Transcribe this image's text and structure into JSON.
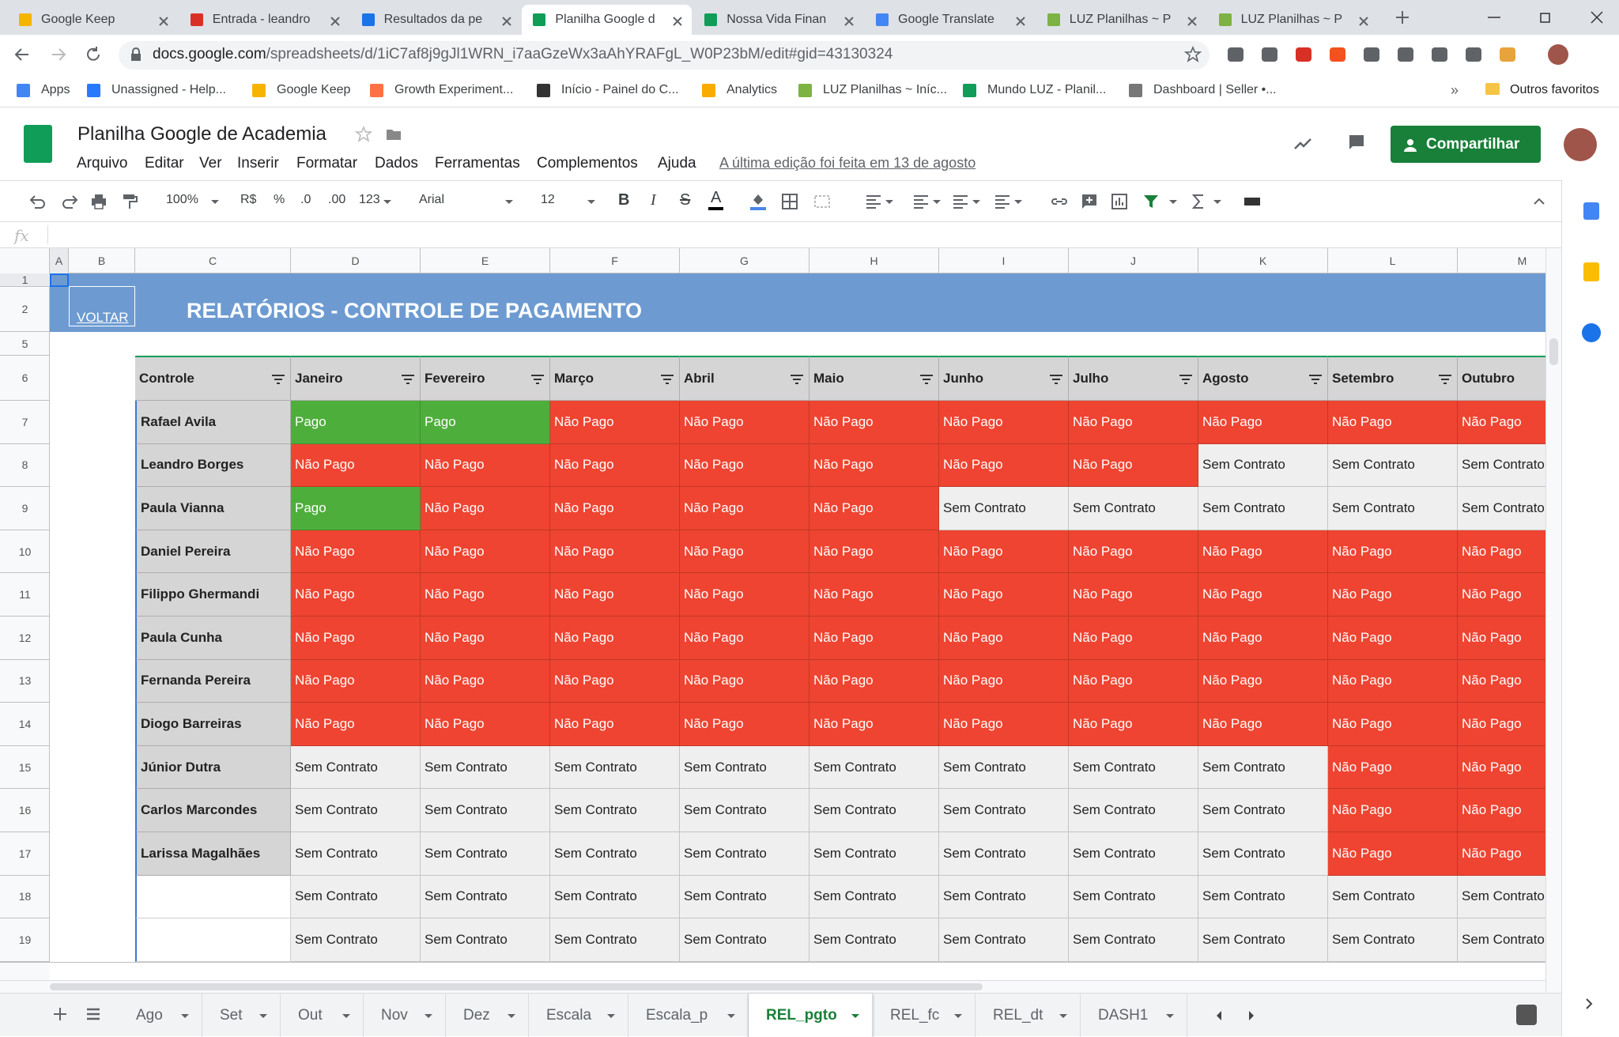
{
  "browser": {
    "tabs": [
      "Google Keep",
      "Entrada - leandro",
      "Resultados da pe",
      "Planilha Google d",
      "Nossa Vida Finan",
      "Google Translate",
      "LUZ Planilhas ~ P",
      "LUZ Planilhas ~ P"
    ],
    "active_tab": 3,
    "url_host": "docs.google.com",
    "url_path": "/spreadsheets/d/1iC7af8j9gJl1WRN_i7aaGzeWx3aAhYRAFgL_W0P23bM/edit#gid=43130324",
    "bookmarks": [
      "Apps",
      "Unassigned - Help...",
      "Google Keep",
      "Growth Experiment...",
      "Início - Painel do C...",
      "Analytics",
      "LUZ Planilhas ~ Iníc...",
      "Mundo LUZ - Planil...",
      "Dashboard | Seller •..."
    ],
    "more_bookmarks": "»",
    "other_bookmarks": "Outros favoritos"
  },
  "docs": {
    "title": "Planilha Google de Academia",
    "menu": [
      "Arquivo",
      "Editar",
      "Ver",
      "Inserir",
      "Formatar",
      "Dados",
      "Ferramentas",
      "Complementos",
      "Ajuda"
    ],
    "last_edit": "A última edição foi feita em 13 de agosto",
    "share": "Compartilhar"
  },
  "toolbar": {
    "zoom": "100%",
    "currency": "R$",
    "percent": "%",
    "decrease_decimals": ".0",
    "increase_decimals": ".00",
    "more_formats": "123",
    "font": "Arial",
    "font_size": "12",
    "bold": "B",
    "italic": "I",
    "strikethrough": "S",
    "text_color": "A"
  },
  "formula_bar": {
    "icon": "fx"
  },
  "sheet": {
    "columns": [
      "A",
      "B",
      "C",
      "D",
      "E",
      "F",
      "G",
      "H",
      "I",
      "J",
      "K",
      "L",
      "M"
    ],
    "rows": [
      1,
      2,
      5,
      6,
      7,
      8,
      9,
      10,
      11,
      12,
      13,
      14,
      15,
      16,
      17,
      18,
      19
    ],
    "back_link": "VOLTAR",
    "title": "RELATÓRIOS - CONTROLE DE PAGAMENTO",
    "table": {
      "header": [
        "Controle",
        "Janeiro",
        "Fevereiro",
        "Março",
        "Abril",
        "Maio",
        "Junho",
        "Julho",
        "Agosto",
        "Setembro",
        "Outubro"
      ],
      "rows": [
        {
          "name": "Rafael Avila",
          "status": [
            "Pago",
            "Pago",
            "Não Pago",
            "Não Pago",
            "Não Pago",
            "Não Pago",
            "Não Pago",
            "Não Pago",
            "Não Pago",
            "Não Pago"
          ]
        },
        {
          "name": "Leandro Borges",
          "status": [
            "Não Pago",
            "Não Pago",
            "Não Pago",
            "Não Pago",
            "Não Pago",
            "Não Pago",
            "Não Pago",
            "Sem Contrato",
            "Sem Contrato",
            "Sem Contrato"
          ]
        },
        {
          "name": "Paula Vianna",
          "status": [
            "Pago",
            "Não Pago",
            "Não Pago",
            "Não Pago",
            "Não Pago",
            "Sem Contrato",
            "Sem Contrato",
            "Sem Contrato",
            "Sem Contrato",
            "Sem Contrato"
          ]
        },
        {
          "name": "Daniel Pereira",
          "status": [
            "Não Pago",
            "Não Pago",
            "Não Pago",
            "Não Pago",
            "Não Pago",
            "Não Pago",
            "Não Pago",
            "Não Pago",
            "Não Pago",
            "Não Pago"
          ]
        },
        {
          "name": "Filippo Ghermandi",
          "status": [
            "Não Pago",
            "Não Pago",
            "Não Pago",
            "Não Pago",
            "Não Pago",
            "Não Pago",
            "Não Pago",
            "Não Pago",
            "Não Pago",
            "Não Pago"
          ]
        },
        {
          "name": "Paula Cunha",
          "status": [
            "Não Pago",
            "Não Pago",
            "Não Pago",
            "Não Pago",
            "Não Pago",
            "Não Pago",
            "Não Pago",
            "Não Pago",
            "Não Pago",
            "Não Pago"
          ]
        },
        {
          "name": "Fernanda Pereira",
          "status": [
            "Não Pago",
            "Não Pago",
            "Não Pago",
            "Não Pago",
            "Não Pago",
            "Não Pago",
            "Não Pago",
            "Não Pago",
            "Não Pago",
            "Não Pago"
          ]
        },
        {
          "name": "Diogo Barreiras",
          "status": [
            "Não Pago",
            "Não Pago",
            "Não Pago",
            "Não Pago",
            "Não Pago",
            "Não Pago",
            "Não Pago",
            "Não Pago",
            "Não Pago",
            "Não Pago"
          ]
        },
        {
          "name": "Júnior Dutra",
          "status": [
            "Sem Contrato",
            "Sem Contrato",
            "Sem Contrato",
            "Sem Contrato",
            "Sem Contrato",
            "Sem Contrato",
            "Sem Contrato",
            "Sem Contrato",
            "Não Pago",
            "Não Pago"
          ]
        },
        {
          "name": "Carlos Marcondes",
          "status": [
            "Sem Contrato",
            "Sem Contrato",
            "Sem Contrato",
            "Sem Contrato",
            "Sem Contrato",
            "Sem Contrato",
            "Sem Contrato",
            "Sem Contrato",
            "Não Pago",
            "Não Pago"
          ]
        },
        {
          "name": "Larissa Magalhães",
          "status": [
            "Sem Contrato",
            "Sem Contrato",
            "Sem Contrato",
            "Sem Contrato",
            "Sem Contrato",
            "Sem Contrato",
            "Sem Contrato",
            "Sem Contrato",
            "Não Pago",
            "Não Pago"
          ]
        },
        {
          "name": null,
          "status": [
            "Sem Contrato",
            "Sem Contrato",
            "Sem Contrato",
            "Sem Contrato",
            "Sem Contrato",
            "Sem Contrato",
            "Sem Contrato",
            "Sem Contrato",
            "Sem Contrato",
            "Sem Contrato"
          ]
        },
        {
          "name": null,
          "status": [
            "Sem Contrato",
            "Sem Contrato",
            "Sem Contrato",
            "Sem Contrato",
            "Sem Contrato",
            "Sem Contrato",
            "Sem Contrato",
            "Sem Contrato",
            "Sem Contrato",
            "Sem Contrato"
          ]
        }
      ]
    },
    "status_styles": {
      "Pago": {
        "fill": "#4eae3c",
        "text": "#ffffff"
      },
      "Não Pago": {
        "fill": "#ee4431",
        "text": "#ffffff"
      },
      "Sem Contrato": {
        "fill": "#efefef",
        "text": "#222222"
      }
    }
  },
  "sheet_tabs": {
    "names": [
      "Ago",
      "Set",
      "Out",
      "Nov",
      "Dez",
      "Escala",
      "Escala_p",
      "REL_pgto",
      "REL_fc",
      "REL_dt",
      "DASH1"
    ],
    "active": 7
  }
}
